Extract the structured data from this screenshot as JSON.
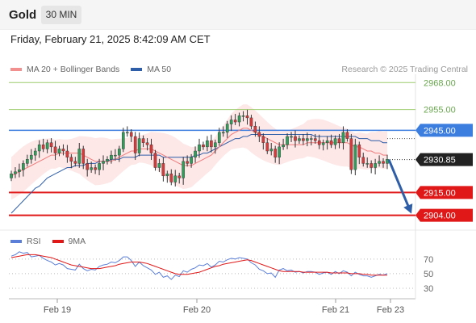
{
  "header": {
    "symbol": "Gold",
    "timeframe": "30 MIN"
  },
  "datetime": "Friday, February 21, 2025 8:42:09 AM CET",
  "research": "Research © 2025 Trading Central",
  "colors": {
    "ma20": "#f07c7c",
    "ma50": "#2f5ea8",
    "bollinger": "#fde4e4",
    "resistance_green": "#9ccb6b",
    "pivot_blue": "#3c7de0",
    "support_red": "#e01818",
    "candle_up": "#2e9e5a",
    "candle_down": "#d63a3a",
    "rsi": "#5b7fd8",
    "rsi_ma": "#e01818",
    "arrow": "#2f5ea8"
  },
  "chart_data": [
    {
      "type": "candlestick",
      "legend": [
        {
          "name": "MA 20 + Bollinger Bands",
          "color": "#f07c7c"
        },
        {
          "name": "MA 50",
          "color": "#2f5ea8"
        }
      ],
      "ylim": [
        2898,
        2972
      ],
      "x_labels": [
        "Feb 19",
        "Feb 20",
        "Feb 21",
        "Feb 23"
      ],
      "levels": [
        {
          "value": 2968.0,
          "label": "2968.00",
          "kind": "resistance"
        },
        {
          "value": 2955.0,
          "label": "2955.00",
          "kind": "resistance"
        },
        {
          "value": 2945.0,
          "label": "2945.00",
          "kind": "pivot"
        },
        {
          "value": 2915.0,
          "label": "2915.00",
          "kind": "support"
        },
        {
          "value": 2904.0,
          "label": "2904.00",
          "kind": "support"
        }
      ],
      "last_price": {
        "value": 2930.85,
        "label": "2930.85"
      },
      "forecast_arrow": {
        "from": 2930.85,
        "to": 2904.0
      },
      "close": [
        2924,
        2925,
        2926,
        2929,
        2931,
        2933,
        2935,
        2938,
        2936,
        2939,
        2937,
        2934,
        2936,
        2935,
        2932,
        2930,
        2929,
        2936,
        2929,
        2926,
        2927,
        2926,
        2929,
        2930,
        2931,
        2933,
        2933,
        2936,
        2944,
        2944,
        2942,
        2934,
        2941,
        2939,
        2938,
        2934,
        2927,
        2929,
        2923,
        2924,
        2920,
        2923,
        2922,
        2930,
        2929,
        2932,
        2935,
        2938,
        2937,
        2940,
        2937,
        2939,
        2944,
        2944,
        2948,
        2950,
        2949,
        2952,
        2952,
        2951,
        2947,
        2944,
        2942,
        2939,
        2935,
        2936,
        2932,
        2937,
        2938,
        2942,
        2942,
        2940,
        2941,
        2940,
        2941,
        2941,
        2940,
        2938,
        2939,
        2940,
        2938,
        2941,
        2939,
        2944,
        2941,
        2926,
        2938,
        2932,
        2929,
        2929,
        2927,
        2929,
        2930,
        2929,
        2931
      ],
      "ma20": [
        2923,
        2924,
        2925,
        2926,
        2927,
        2928,
        2929,
        2930,
        2931,
        2932,
        2933,
        2933,
        2934,
        2934,
        2934,
        2934,
        2934,
        2934,
        2933,
        2932,
        2931,
        2930,
        2930,
        2930,
        2930,
        2930,
        2931,
        2932,
        2933,
        2934,
        2935,
        2935,
        2936,
        2936,
        2936,
        2936,
        2935,
        2934,
        2933,
        2932,
        2931,
        2930,
        2929,
        2928,
        2928,
        2928,
        2929,
        2930,
        2931,
        2932,
        2933,
        2935,
        2937,
        2939,
        2941,
        2943,
        2944,
        2945,
        2946,
        2946,
        2945,
        2944,
        2943,
        2942,
        2941,
        2940,
        2939,
        2938,
        2938,
        2938,
        2938,
        2938,
        2938,
        2938,
        2939,
        2939,
        2939,
        2939,
        2939,
        2939,
        2939,
        2939,
        2939,
        2939,
        2939,
        2938,
        2937,
        2937,
        2936,
        2935,
        2935,
        2934,
        2934,
        2933,
        2933
      ],
      "ma50": [
        2905,
        2907,
        2909,
        2911,
        2913,
        2915,
        2917,
        2918,
        2920,
        2922,
        2923,
        2924,
        2925,
        2926,
        2927,
        2927,
        2928,
        2928,
        2928,
        2929,
        2929,
        2929,
        2930,
        2930,
        2930,
        2931,
        2931,
        2931,
        2932,
        2932,
        2932,
        2932,
        2933,
        2933,
        2933,
        2933,
        2933,
        2933,
        2932,
        2932,
        2932,
        2932,
        2932,
        2932,
        2932,
        2932,
        2933,
        2933,
        2934,
        2934,
        2935,
        2936,
        2937,
        2938,
        2939,
        2940,
        2941,
        2941,
        2942,
        2942,
        2943,
        2943,
        2943,
        2943,
        2943,
        2943,
        2943,
        2943,
        2943,
        2943,
        2943,
        2943,
        2943,
        2943,
        2943,
        2943,
        2942,
        2942,
        2942,
        2942,
        2942,
        2942,
        2942,
        2942,
        2942,
        2942,
        2942,
        2941,
        2941,
        2941,
        2940,
        2940,
        2940,
        2939,
        2939
      ],
      "bb_width": 9
    },
    {
      "type": "line",
      "legend": [
        {
          "name": "RSI",
          "color": "#5b7fd8"
        },
        {
          "name": "9MA",
          "color": "#e01818"
        }
      ],
      "ylim": [
        20,
        82
      ],
      "ticks": [
        70,
        50,
        30
      ],
      "rsi": [
        74,
        76,
        80,
        78,
        79,
        73,
        74,
        75,
        71,
        68,
        66,
        62,
        64,
        62,
        57,
        56,
        55,
        63,
        57,
        54,
        56,
        55,
        60,
        62,
        63,
        66,
        65,
        68,
        73,
        73,
        68,
        60,
        66,
        61,
        58,
        55,
        49,
        52,
        45,
        47,
        42,
        48,
        46,
        54,
        52,
        56,
        58,
        62,
        61,
        64,
        59,
        62,
        67,
        66,
        69,
        71,
        70,
        72,
        71,
        70,
        65,
        62,
        56,
        54,
        50,
        51,
        45,
        55,
        57,
        54,
        55,
        52,
        53,
        51,
        53,
        53,
        52,
        49,
        51,
        52,
        49,
        53,
        50,
        54,
        52,
        47,
        52,
        49,
        47,
        47,
        45,
        47,
        49,
        48,
        50
      ],
      "ma9": [
        72,
        73,
        74,
        75,
        76,
        76,
        76,
        75,
        74,
        73,
        72,
        70,
        68,
        66,
        64,
        62,
        61,
        60,
        59,
        58,
        57,
        57,
        57,
        58,
        59,
        60,
        61,
        63,
        64,
        65,
        66,
        66,
        66,
        65,
        64,
        62,
        60,
        58,
        56,
        54,
        52,
        50,
        49,
        49,
        49,
        50,
        51,
        52,
        54,
        56,
        58,
        60,
        61,
        63,
        64,
        65,
        66,
        67,
        68,
        69,
        68,
        66,
        64,
        62,
        60,
        58,
        56,
        54,
        53,
        53,
        53,
        53,
        53,
        52,
        52,
        52,
        52,
        52,
        52,
        52,
        51,
        51,
        51,
        51,
        51,
        50,
        50,
        50,
        49,
        49,
        48,
        48,
        48,
        48,
        48
      ]
    }
  ]
}
